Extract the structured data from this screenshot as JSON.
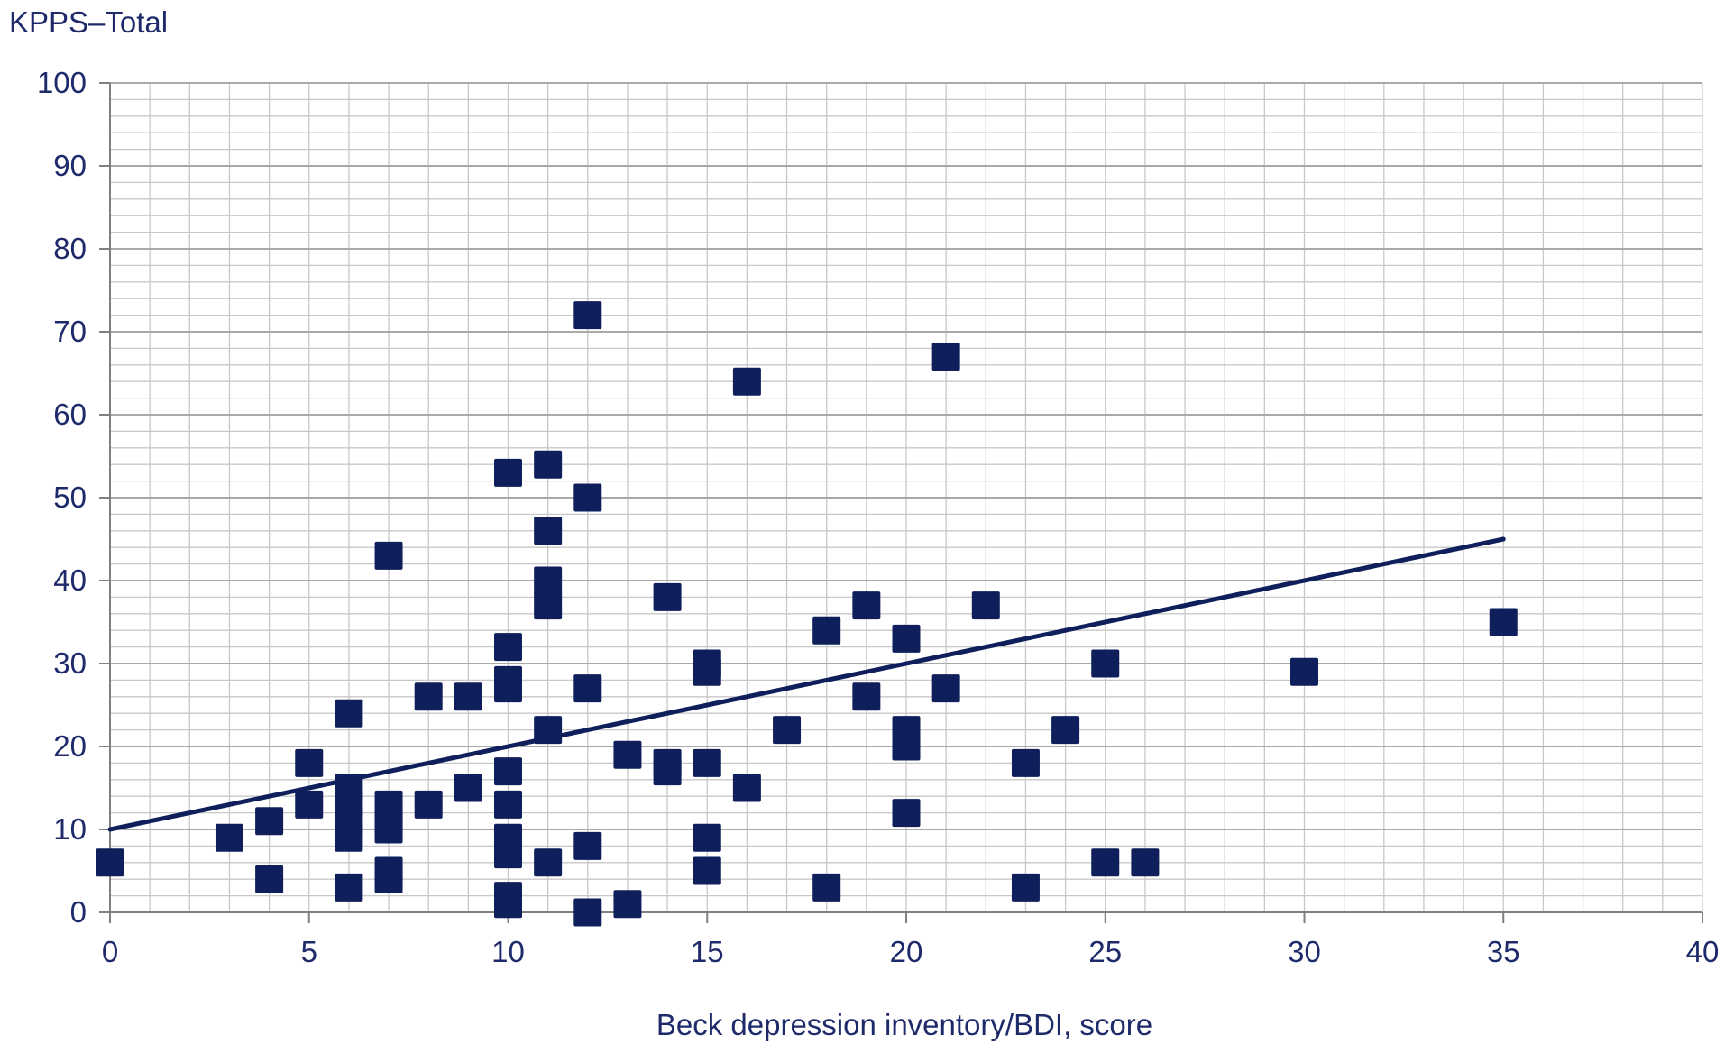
{
  "chart_data": {
    "type": "scatter",
    "title": "",
    "ylabel": "KPPS–Total",
    "xlabel": "Beck depression inventory/BDI, score",
    "xlim": [
      0,
      40
    ],
    "ylim": [
      0,
      100
    ],
    "xticks": [
      0,
      5,
      10,
      15,
      20,
      25,
      30,
      35,
      40
    ],
    "yticks": [
      0,
      10,
      20,
      30,
      40,
      50,
      60,
      70,
      80,
      90,
      100
    ],
    "xtick_labels": [
      "0",
      "5",
      "10",
      "15",
      "20",
      "25",
      "30",
      "35",
      "40"
    ],
    "ytick_labels": [
      "0",
      "10",
      "20",
      "30",
      "40",
      "50",
      "60",
      "70",
      "80",
      "90",
      "100"
    ],
    "grid": true,
    "legend": "none",
    "marker": "square",
    "colors": {
      "marker": "#0e1f5b",
      "trendline": "#0e1f5b",
      "grid": "#c8c8c8",
      "text": "#1f2a6b"
    },
    "series": [
      {
        "points": [
          [
            0,
            6
          ],
          [
            3,
            9
          ],
          [
            4,
            11
          ],
          [
            4,
            4
          ],
          [
            5,
            18
          ],
          [
            5,
            13
          ],
          [
            6,
            24
          ],
          [
            6,
            15
          ],
          [
            6,
            13
          ],
          [
            6,
            11
          ],
          [
            6,
            9
          ],
          [
            6,
            3
          ],
          [
            7,
            43
          ],
          [
            7,
            13
          ],
          [
            7,
            11
          ],
          [
            7,
            10
          ],
          [
            7,
            5
          ],
          [
            7,
            4
          ],
          [
            8,
            26
          ],
          [
            8,
            13
          ],
          [
            9,
            26
          ],
          [
            9,
            15
          ],
          [
            10,
            53
          ],
          [
            10,
            32
          ],
          [
            10,
            28
          ],
          [
            10,
            27
          ],
          [
            10,
            17
          ],
          [
            10,
            13
          ],
          [
            10,
            9
          ],
          [
            10,
            7
          ],
          [
            10,
            2
          ],
          [
            10,
            1
          ],
          [
            11,
            54
          ],
          [
            11,
            46
          ],
          [
            11,
            40
          ],
          [
            11,
            37
          ],
          [
            11,
            22
          ],
          [
            11,
            6
          ],
          [
            12,
            72
          ],
          [
            12,
            50
          ],
          [
            12,
            27
          ],
          [
            12,
            8
          ],
          [
            12,
            0
          ],
          [
            13,
            19
          ],
          [
            13,
            1
          ],
          [
            14,
            38
          ],
          [
            14,
            18
          ],
          [
            14,
            17
          ],
          [
            15,
            30
          ],
          [
            15,
            29
          ],
          [
            15,
            18
          ],
          [
            15,
            9
          ],
          [
            15,
            5
          ],
          [
            16,
            64
          ],
          [
            16,
            15
          ],
          [
            17,
            22
          ],
          [
            18,
            34
          ],
          [
            18,
            3
          ],
          [
            19,
            37
          ],
          [
            19,
            26
          ],
          [
            20,
            33
          ],
          [
            20,
            22
          ],
          [
            20,
            20
          ],
          [
            20,
            12
          ],
          [
            21,
            67
          ],
          [
            21,
            27
          ],
          [
            22,
            37
          ],
          [
            23,
            18
          ],
          [
            23,
            3
          ],
          [
            24,
            22
          ],
          [
            25,
            30
          ],
          [
            25,
            6
          ],
          [
            26,
            6
          ],
          [
            30,
            29
          ],
          [
            35,
            35
          ]
        ]
      }
    ],
    "trendline": {
      "x": [
        0,
        35
      ],
      "y": [
        10,
        45
      ]
    }
  }
}
